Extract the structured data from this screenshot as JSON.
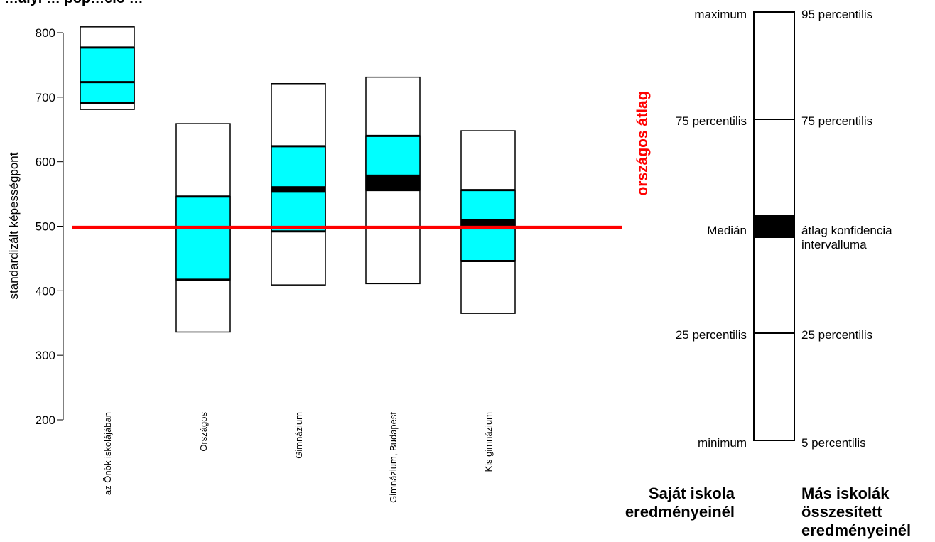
{
  "chart_data": {
    "type": "box",
    "title": "…ályi … pop…ció …",
    "ylabel": "standardizált képességpont",
    "ylim": [
      200,
      800
    ],
    "yticks": [
      "200",
      "300",
      "400",
      "500",
      "600",
      "700",
      "800"
    ],
    "reference_line": {
      "label": "országos átlag",
      "value": 498,
      "color": "#ff0000"
    },
    "colors": {
      "quartile_fill": "#00ffff",
      "ci_fill": "#000000",
      "box_stroke": "#000000"
    },
    "categories": [
      "az Önök iskolájában",
      "Országos",
      "Gimnázium",
      "Gimnázium, Budapest",
      "Kis gimnázium"
    ],
    "series": [
      {
        "p5": 681,
        "p25": 691,
        "median": 723,
        "p75": 777,
        "p95": 809,
        "ci_low": 722,
        "ci_high": 725
      },
      {
        "p5": 336,
        "p25": 417,
        "median": 498,
        "p75": 546,
        "p95": 659,
        "ci_low": 497,
        "ci_high": 499
      },
      {
        "p5": 409,
        "p25": 492,
        "median": 559,
        "p75": 624,
        "p95": 721,
        "ci_low": 553,
        "ci_high": 562
      },
      {
        "p5": 411,
        "p25": 556,
        "median": 575,
        "p75": 640,
        "p95": 731,
        "ci_low": 557,
        "ci_high": 580
      },
      {
        "p5": 365,
        "p25": 446,
        "median": 503,
        "p75": 556,
        "p95": 648,
        "ci_low": 495,
        "ci_high": 511
      }
    ]
  },
  "legend": {
    "left_labels": {
      "max": "maximum",
      "p75": "75 percentilis",
      "median": "Medián",
      "p25": "25 percentilis",
      "min": "minimum"
    },
    "right_labels": {
      "p95": "95 percentilis",
      "p75": "75 percentilis",
      "ci_line1": "átlag konfidencia",
      "ci_line2": "intervalluma",
      "p25": "25 percentilis",
      "p5": "5 percentilis"
    },
    "caption_left": [
      "Saját iskola",
      "eredményeinél"
    ],
    "caption_right": [
      "Más iskolák",
      "összesített",
      "eredményeinél"
    ]
  }
}
